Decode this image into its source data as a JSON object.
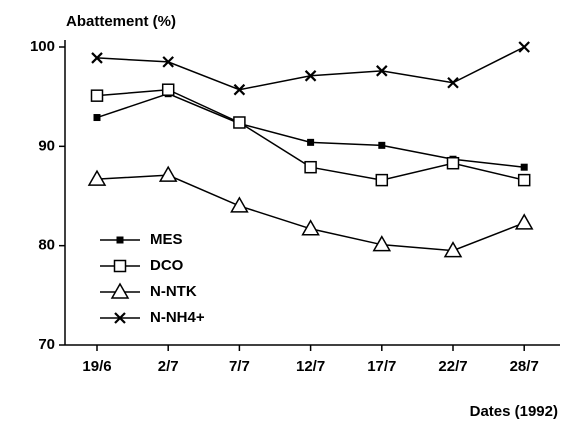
{
  "chart_data": {
    "type": "line",
    "y_label": "Abattement (%)",
    "x_label": "Dates (1992)",
    "categories": [
      "19/6",
      "2/7",
      "7/7",
      "12/7",
      "17/7",
      "22/7",
      "28/7"
    ],
    "series": [
      {
        "name": "MES",
        "color": "#000000",
        "marker": "filled-square",
        "values": [
          92.9,
          95.3,
          92.3,
          90.4,
          90.1,
          88.7,
          87.9
        ]
      },
      {
        "name": "DCO",
        "color": "#000000",
        "marker": "open-square",
        "values": [
          95.1,
          95.7,
          92.4,
          87.9,
          86.6,
          88.3,
          86.6
        ]
      },
      {
        "name": "N-NTK",
        "color": "#000000",
        "marker": "open-triangle",
        "values": [
          86.7,
          87.1,
          84.0,
          81.7,
          80.1,
          79.5,
          82.3
        ]
      },
      {
        "name": "N-NH4+",
        "color": "#000000",
        "marker": "cross",
        "values": [
          98.9,
          98.5,
          95.7,
          97.1,
          97.6,
          96.4,
          100
        ]
      }
    ],
    "ylim": [
      70,
      100
    ],
    "yticks": [
      70,
      80,
      90,
      100
    ],
    "grid": false
  }
}
